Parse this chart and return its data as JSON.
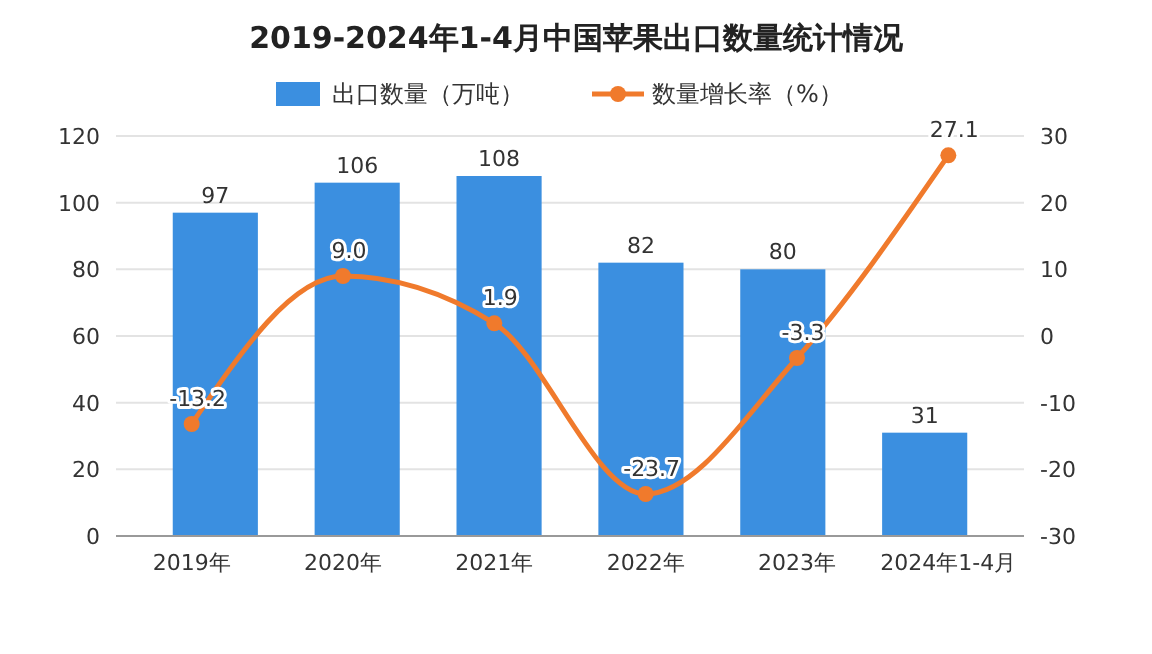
{
  "chart_data": {
    "type": "bar",
    "title": "2019-2024年1-4月中国苹果出口数量统计情况",
    "categories": [
      "2019年",
      "2020年",
      "2021年",
      "2022年",
      "2023年",
      "2024年1-4月"
    ],
    "series": [
      {
        "name": "出口数量（万吨）",
        "color": "#3b8fe0",
        "values": [
          97,
          106,
          108,
          82,
          80,
          31
        ]
      },
      {
        "name": "数量增长率（%）",
        "type": "line",
        "axis": "y2",
        "color": "#f07a2c",
        "marker": "circle",
        "values": [
          -13.2,
          9.0,
          1.9,
          -23.7,
          -3.3,
          27.1
        ],
        "value_labels": [
          "-13.2",
          "9.0",
          "1.9",
          "-23.7",
          "-3.3",
          "27.1"
        ]
      }
    ],
    "data_labels": true,
    "ylim": [
      0,
      120
    ],
    "yticks": [
      0,
      20,
      40,
      60,
      80,
      100,
      120
    ],
    "y2lim": [
      -30,
      30
    ],
    "y2ticks": [
      -30,
      -20,
      -10,
      0,
      10,
      20,
      30
    ],
    "grid": "y",
    "legend": "top"
  }
}
